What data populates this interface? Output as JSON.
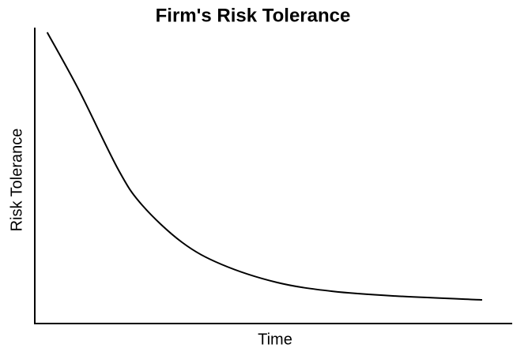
{
  "chart_data": {
    "type": "line",
    "title": "Firm's Risk Tolerance",
    "x_label": "Time",
    "y_label": "Risk Tolerance",
    "xlim": [
      0,
      100
    ],
    "ylim": [
      0,
      100
    ],
    "series": [
      {
        "color": "#000000",
        "x": [
          2.6,
          9.3,
          17.5,
          22.5,
          30.8,
          39.1,
          50.7,
          62.3,
          75.5,
          93.7
        ],
        "values": [
          98.4,
          78.7,
          52,
          40,
          27.5,
          20,
          13.9,
          10.9,
          9.3,
          8
        ]
      }
    ]
  }
}
